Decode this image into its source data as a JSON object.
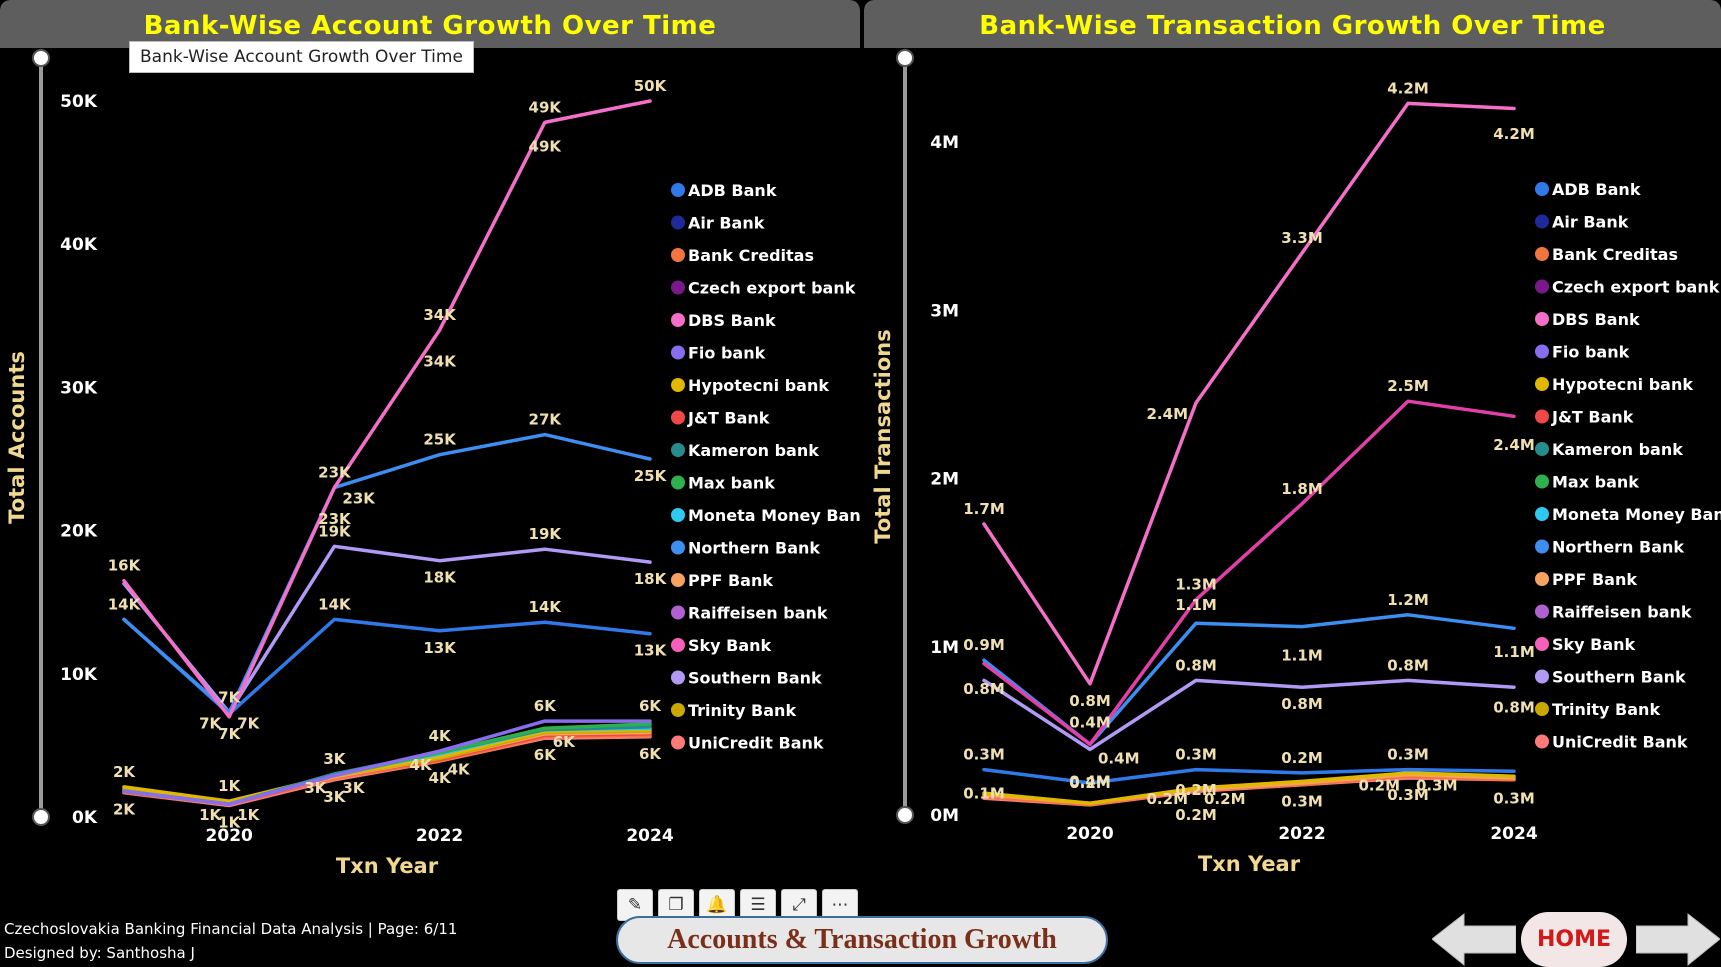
{
  "left_chart": {
    "header": "Bank-Wise Account Growth Over Time",
    "tooltip": "Bank-Wise Account Growth Over Time"
  },
  "right_chart": {
    "header": "Bank-Wise Transaction Growth Over Time"
  },
  "footer": {
    "line1": "Czechoslovakia Banking Financial Data Analysis | Page: 6/11",
    "line2": "Designed by: Santhosha J",
    "page_button": "Accounts & Transaction Growth",
    "home_button": "HOME"
  },
  "toolbar": {
    "icons": [
      "pin-icon",
      "copy-icon",
      "bell-icon",
      "filter-icon",
      "focus-mode-icon",
      "more-options-icon"
    ],
    "glyphs": [
      "✎",
      "❐",
      "🔔",
      "☰",
      "⤢",
      "⋯"
    ]
  },
  "colors": {
    "background": "#000000",
    "header_bar": "#5e5e5e",
    "header_text": "#ffff00",
    "axis_text": "#ffffff",
    "axis_title": "#f0d890",
    "data_label": "#f0e0b0"
  },
  "chart_data": [
    {
      "type": "line",
      "title": "Bank-Wise Account Growth Over Time",
      "xlabel": "Txn Year",
      "ylabel": "Total Accounts",
      "x": [
        2019,
        2020,
        2021,
        2022,
        2023,
        2024
      ],
      "x_ticks": [
        2020,
        2022,
        2024
      ],
      "x_tick_labels": [
        "2020",
        "2022",
        "2024"
      ],
      "ylim": [
        0,
        53000
      ],
      "y_ticks": [
        0,
        10000,
        20000,
        30000,
        40000,
        50000
      ],
      "y_tick_labels": [
        "0K",
        "10K",
        "20K",
        "30K",
        "40K",
        "50K"
      ],
      "legend": "right",
      "grid": false,
      "series": [
        {
          "name": "DBS Bank",
          "color": "#f36fc8",
          "values": [
            16500,
            7000,
            23000,
            34000,
            48500,
            50000
          ]
        },
        {
          "name": "Northern Bank",
          "color": "#3c8ff0",
          "values": [
            13800,
            7300,
            23000,
            25300,
            26700,
            25000
          ]
        },
        {
          "name": "Southern Bank",
          "color": "#b09af5",
          "values": [
            16300,
            7300,
            18900,
            17900,
            18700,
            17800
          ]
        },
        {
          "name": "ADB Bank",
          "color": "#2f7ae8",
          "values": [
            13800,
            7200,
            13800,
            13000,
            13600,
            12800
          ]
        },
        {
          "name": "Fio bank",
          "color": "#8a6cf0",
          "values": [
            1800,
            900,
            2900,
            4600,
            6700,
            6700
          ]
        },
        {
          "name": "Max bank",
          "color": "#2db04d",
          "values": [
            1800,
            900,
            2900,
            4500,
            6200,
            6500
          ]
        },
        {
          "name": "Kameron bank",
          "color": "#268d8d",
          "values": [
            1800,
            900,
            3000,
            4500,
            6100,
            6300
          ]
        },
        {
          "name": "Moneta Money Bank",
          "color": "#2ec9f0",
          "values": [
            1800,
            900,
            3000,
            4400,
            6100,
            6200
          ]
        },
        {
          "name": "Hypotecni bank",
          "color": "#e0b800",
          "values": [
            2100,
            1100,
            2900,
            4200,
            6000,
            6100
          ]
        },
        {
          "name": "Trinity Bank",
          "color": "#c9a800",
          "values": [
            2000,
            1100,
            2900,
            4100,
            5900,
            6000
          ]
        },
        {
          "name": "PPF Bank",
          "color": "#f7a260",
          "values": [
            1900,
            1000,
            2800,
            4100,
            5800,
            5900
          ]
        },
        {
          "name": "J&T Bank",
          "color": "#f04848",
          "values": [
            1800,
            900,
            2800,
            4000,
            5700,
            5800
          ]
        },
        {
          "name": "Bank Creditas",
          "color": "#f27540",
          "values": [
            1700,
            900,
            2700,
            3900,
            5600,
            5700
          ]
        },
        {
          "name": "UniCredit Bank",
          "color": "#ff7a7a",
          "values": [
            1700,
            800,
            2600,
            3900,
            5500,
            5600
          ]
        }
      ],
      "data_labels": [
        {
          "text": "16K",
          "x": 2019,
          "y": 16500,
          "pos": "above"
        },
        {
          "text": "14K",
          "x": 2019,
          "y": 13800,
          "pos": "above"
        },
        {
          "text": "7K",
          "x": 2020,
          "y": 7300,
          "pos": "above"
        },
        {
          "text": "7K",
          "x": 2020,
          "y": 7300,
          "pos": "left"
        },
        {
          "text": "7K",
          "x": 2020,
          "y": 7300,
          "pos": "right"
        },
        {
          "text": "7K",
          "x": 2020,
          "y": 7000,
          "pos": "below"
        },
        {
          "text": "23K",
          "x": 2021,
          "y": 23000,
          "pos": "above"
        },
        {
          "text": "23K",
          "x": 2021,
          "y": 23000,
          "pos": "right"
        },
        {
          "text": "23K",
          "x": 2021,
          "y": 22000,
          "pos": "below"
        },
        {
          "text": "19K",
          "x": 2021,
          "y": 18900,
          "pos": "above"
        },
        {
          "text": "14K",
          "x": 2021,
          "y": 13800,
          "pos": "above"
        },
        {
          "text": "34K",
          "x": 2022,
          "y": 34000,
          "pos": "above"
        },
        {
          "text": "34K",
          "x": 2022,
          "y": 33000,
          "pos": "below"
        },
        {
          "text": "25K",
          "x": 2022,
          "y": 25300,
          "pos": "above"
        },
        {
          "text": "18K",
          "x": 2022,
          "y": 17900,
          "pos": "below"
        },
        {
          "text": "13K",
          "x": 2022,
          "y": 13000,
          "pos": "below"
        },
        {
          "text": "49K",
          "x": 2023,
          "y": 48500,
          "pos": "above"
        },
        {
          "text": "49K",
          "x": 2023,
          "y": 48000,
          "pos": "below"
        },
        {
          "text": "27K",
          "x": 2023,
          "y": 26700,
          "pos": "above"
        },
        {
          "text": "19K",
          "x": 2023,
          "y": 18700,
          "pos": "above"
        },
        {
          "text": "14K",
          "x": 2023,
          "y": 13600,
          "pos": "above"
        },
        {
          "text": "50K",
          "x": 2024,
          "y": 50000,
          "pos": "above"
        },
        {
          "text": "25K",
          "x": 2024,
          "y": 25000,
          "pos": "below"
        },
        {
          "text": "18K",
          "x": 2024,
          "y": 17800,
          "pos": "below"
        },
        {
          "text": "13K",
          "x": 2024,
          "y": 12800,
          "pos": "below"
        },
        {
          "text": "2K",
          "x": 2019,
          "y": 2100,
          "pos": "above"
        },
        {
          "text": "2K",
          "x": 2019,
          "y": 1700,
          "pos": "below"
        },
        {
          "text": "1K",
          "x": 2020,
          "y": 1100,
          "pos": "above"
        },
        {
          "text": "1K",
          "x": 2020,
          "y": 900,
          "pos": "left"
        },
        {
          "text": "1K",
          "x": 2020,
          "y": 900,
          "pos": "right"
        },
        {
          "text": "1K",
          "x": 2020,
          "y": 800,
          "pos": "below"
        },
        {
          "text": "3K",
          "x": 2021,
          "y": 3000,
          "pos": "above"
        },
        {
          "text": "3K",
          "x": 2021,
          "y": 2800,
          "pos": "left"
        },
        {
          "text": "3K",
          "x": 2021,
          "y": 2800,
          "pos": "right"
        },
        {
          "text": "3K",
          "x": 2021,
          "y": 2600,
          "pos": "below"
        },
        {
          "text": "4K",
          "x": 2022,
          "y": 4600,
          "pos": "above"
        },
        {
          "text": "4K",
          "x": 2022,
          "y": 4400,
          "pos": "left"
        },
        {
          "text": "4K",
          "x": 2022,
          "y": 4100,
          "pos": "right"
        },
        {
          "text": "4K",
          "x": 2022,
          "y": 3900,
          "pos": "below"
        },
        {
          "text": "6K",
          "x": 2023,
          "y": 6700,
          "pos": "above"
        },
        {
          "text": "6K",
          "x": 2023,
          "y": 6000,
          "pos": "right"
        },
        {
          "text": "6K",
          "x": 2023,
          "y": 5500,
          "pos": "below"
        },
        {
          "text": "6K",
          "x": 2024,
          "y": 6700,
          "pos": "above"
        },
        {
          "text": "6K",
          "x": 2024,
          "y": 5600,
          "pos": "below"
        }
      ]
    },
    {
      "type": "line",
      "title": "Bank-Wise Transaction Growth Over Time",
      "xlabel": "Txn Year",
      "ylabel": "Total Transactions",
      "x": [
        2019,
        2020,
        2021,
        2022,
        2023,
        2024
      ],
      "x_ticks": [
        2020,
        2022,
        2024
      ],
      "x_tick_labels": [
        "2020",
        "2022",
        "2024"
      ],
      "ylim": [
        0,
        4500000
      ],
      "y_ticks": [
        0,
        1000000,
        2000000,
        3000000,
        4000000
      ],
      "y_tick_labels": [
        "0M",
        "1M",
        "2M",
        "3M",
        "4M"
      ],
      "legend": "right",
      "grid": false,
      "series": [
        {
          "name": "DBS Bank",
          "color": "#f36fc8",
          "values": [
            1730000,
            780000,
            2450000,
            3340000,
            4230000,
            4200000
          ]
        },
        {
          "name": "Sky Bank",
          "color": "#e040a8",
          "values": [
            900000,
            420000,
            1280000,
            1850000,
            2460000,
            2370000
          ]
        },
        {
          "name": "Northern Bank",
          "color": "#3c8ff0",
          "values": [
            920000,
            420000,
            1140000,
            1120000,
            1190000,
            1110000
          ]
        },
        {
          "name": "Southern Bank",
          "color": "#b09af5",
          "values": [
            800000,
            390000,
            800000,
            760000,
            800000,
            760000
          ]
        },
        {
          "name": "ADB Bank",
          "color": "#2f7ae8",
          "values": [
            270000,
            190000,
            270000,
            250000,
            270000,
            260000
          ]
        },
        {
          "name": "Hypotecni bank",
          "color": "#e0b800",
          "values": [
            130000,
            70000,
            160000,
            200000,
            250000,
            230000
          ]
        },
        {
          "name": "PPF Bank",
          "color": "#f7a260",
          "values": [
            120000,
            70000,
            150000,
            190000,
            240000,
            220000
          ]
        },
        {
          "name": "Bank Creditas",
          "color": "#f27540",
          "values": [
            110000,
            60000,
            150000,
            180000,
            230000,
            210000
          ]
        },
        {
          "name": "UniCredit Bank",
          "color": "#ff7a7a",
          "values": [
            100000,
            60000,
            140000,
            180000,
            220000,
            210000
          ]
        }
      ],
      "data_labels": [
        {
          "text": "1.7M",
          "x": 2019,
          "y": 1730000,
          "pos": "above"
        },
        {
          "text": "0.9M",
          "x": 2019,
          "y": 920000,
          "pos": "above"
        },
        {
          "text": "0.8M",
          "x": 2019,
          "y": 850000,
          "pos": "below"
        },
        {
          "text": "0.3M",
          "x": 2019,
          "y": 270000,
          "pos": "above"
        },
        {
          "text": "0.1M",
          "x": 2019,
          "y": 230000,
          "pos": "below"
        },
        {
          "text": "0.8M",
          "x": 2020,
          "y": 780000,
          "pos": "below"
        },
        {
          "text": "0.4M",
          "x": 2020,
          "y": 460000,
          "pos": "above"
        },
        {
          "text": "0.4M",
          "x": 2020,
          "y": 400000,
          "pos": "right"
        },
        {
          "text": "0.4M",
          "x": 2020,
          "y": 300000,
          "pos": "below"
        },
        {
          "text": "0.2M",
          "x": 2020,
          "y": 100000,
          "pos": "above"
        },
        {
          "text": "2.4M",
          "x": 2021,
          "y": 2450000,
          "pos": "left"
        },
        {
          "text": "1.3M",
          "x": 2021,
          "y": 1280000,
          "pos": "above"
        },
        {
          "text": "1.1M",
          "x": 2021,
          "y": 1160000,
          "pos": "above"
        },
        {
          "text": "0.8M",
          "x": 2021,
          "y": 800000,
          "pos": "above"
        },
        {
          "text": "0.3M",
          "x": 2021,
          "y": 270000,
          "pos": "above"
        },
        {
          "text": "0.2M",
          "x": 2021,
          "y": 250000,
          "pos": "below"
        },
        {
          "text": "0.2M",
          "x": 2021,
          "y": 160000,
          "pos": "left"
        },
        {
          "text": "0.2M",
          "x": 2021,
          "y": 160000,
          "pos": "right"
        },
        {
          "text": "0.2M",
          "x": 2021,
          "y": 100000,
          "pos": "below"
        },
        {
          "text": "3.3M",
          "x": 2022,
          "y": 3340000,
          "pos": "above"
        },
        {
          "text": "1.8M",
          "x": 2022,
          "y": 1850000,
          "pos": "above"
        },
        {
          "text": "1.1M",
          "x": 2022,
          "y": 1050000,
          "pos": "below"
        },
        {
          "text": "0.8M",
          "x": 2022,
          "y": 760000,
          "pos": "below"
        },
        {
          "text": "0.2M",
          "x": 2022,
          "y": 250000,
          "pos": "above"
        },
        {
          "text": "0.3M",
          "x": 2022,
          "y": 180000,
          "pos": "below"
        },
        {
          "text": "4.2M",
          "x": 2023,
          "y": 4230000,
          "pos": "above"
        },
        {
          "text": "2.5M",
          "x": 2023,
          "y": 2460000,
          "pos": "above"
        },
        {
          "text": "1.2M",
          "x": 2023,
          "y": 1190000,
          "pos": "above"
        },
        {
          "text": "0.8M",
          "x": 2023,
          "y": 800000,
          "pos": "above"
        },
        {
          "text": "0.3M",
          "x": 2023,
          "y": 270000,
          "pos": "above"
        },
        {
          "text": "0.2M",
          "x": 2023,
          "y": 240000,
          "pos": "left"
        },
        {
          "text": "0.3M",
          "x": 2023,
          "y": 240000,
          "pos": "right"
        },
        {
          "text": "0.3M",
          "x": 2023,
          "y": 220000,
          "pos": "below"
        },
        {
          "text": "4.2M",
          "x": 2024,
          "y": 4150000,
          "pos": "below"
        },
        {
          "text": "2.4M",
          "x": 2024,
          "y": 2300000,
          "pos": "below"
        },
        {
          "text": "1.1M",
          "x": 2024,
          "y": 1070000,
          "pos": "below"
        },
        {
          "text": "0.8M",
          "x": 2024,
          "y": 740000,
          "pos": "below"
        },
        {
          "text": "0.3M",
          "x": 2024,
          "y": 200000,
          "pos": "below"
        }
      ]
    }
  ],
  "legend_items": [
    {
      "name": "ADB Bank",
      "color": "#2f7ae8"
    },
    {
      "name": "Air Bank",
      "color": "#1e2a9a"
    },
    {
      "name": "Bank Creditas",
      "color": "#f27540"
    },
    {
      "name": "Czech export bank",
      "color": "#7a1a8a"
    },
    {
      "name": "DBS Bank",
      "color": "#f36fc8"
    },
    {
      "name": "Fio bank",
      "color": "#8a6cf0"
    },
    {
      "name": "Hypotecni bank",
      "color": "#e0b800"
    },
    {
      "name": "J&T Bank",
      "color": "#f04848"
    },
    {
      "name": "Kameron bank",
      "color": "#268d8d"
    },
    {
      "name": "Max bank",
      "color": "#2db04d"
    },
    {
      "name": "Moneta Money Bank",
      "color": "#2ec9f0"
    },
    {
      "name": "Northern Bank",
      "color": "#3c8ff0"
    },
    {
      "name": "PPF Bank",
      "color": "#f7a260"
    },
    {
      "name": "Raiffeisen bank",
      "color": "#b060d0"
    },
    {
      "name": "Sky Bank",
      "color": "#f560b8"
    },
    {
      "name": "Southern Bank",
      "color": "#b09af5"
    },
    {
      "name": "Trinity Bank",
      "color": "#c9a800"
    },
    {
      "name": "UniCredit Bank",
      "color": "#ff7a7a"
    }
  ]
}
